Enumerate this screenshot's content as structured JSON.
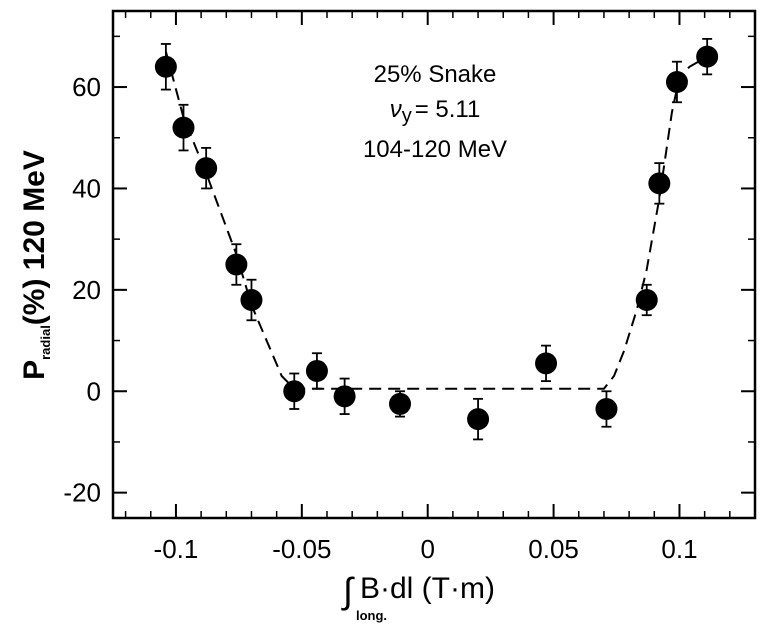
{
  "chart_data": {
    "type": "scatter",
    "xlim": [
      -0.125,
      0.13
    ],
    "ylim": [
      -25,
      75
    ],
    "xticks": [
      -0.1,
      -0.05,
      0,
      0.05,
      0.1
    ],
    "xtick_labels": [
      "-0.1",
      "-0.05",
      "0",
      "0.05",
      "0.1"
    ],
    "yticks": [
      -20,
      0,
      20,
      40,
      60
    ],
    "ytick_labels": [
      "-20",
      "0",
      "20",
      "40",
      "60"
    ],
    "ylabel": {
      "main": "P",
      "sub": "radial",
      "rest": "(%) 120 MeV"
    },
    "xlabel": {
      "integral": "∫",
      "main": "B·dl (T·m)",
      "sub": "long."
    },
    "annotations": {
      "line1": "25% Snake",
      "line2_symbol": "ν",
      "line2_sub": "y",
      "line2_rest": "= 5.11",
      "line3": "104-120 MeV"
    },
    "series": [
      {
        "marker": "filled-circle",
        "points": [
          {
            "x": -0.104,
            "y": 64,
            "err": 4.5
          },
          {
            "x": -0.097,
            "y": 52,
            "err": 4.5
          },
          {
            "x": -0.088,
            "y": 44,
            "err": 4
          },
          {
            "x": -0.076,
            "y": 25,
            "err": 4
          },
          {
            "x": -0.07,
            "y": 18,
            "err": 4
          },
          {
            "x": -0.053,
            "y": 0,
            "err": 3.5
          },
          {
            "x": -0.044,
            "y": 4,
            "err": 3.5
          },
          {
            "x": -0.033,
            "y": -1,
            "err": 3.5
          },
          {
            "x": -0.011,
            "y": -2.5,
            "err": 2.5
          },
          {
            "x": 0.02,
            "y": -5.5,
            "err": 4
          },
          {
            "x": 0.047,
            "y": 5.5,
            "err": 3.5
          },
          {
            "x": 0.071,
            "y": -3.5,
            "err": 3.5
          },
          {
            "x": 0.087,
            "y": 18,
            "err": 3
          },
          {
            "x": 0.092,
            "y": 41,
            "err": 4
          },
          {
            "x": 0.099,
            "y": 61,
            "err": 4
          },
          {
            "x": 0.111,
            "y": 66,
            "err": 3.5
          }
        ]
      }
    ],
    "fit_curve": {
      "style": "dashed",
      "x": [
        -0.104,
        -0.097,
        -0.088,
        -0.076,
        -0.07,
        -0.058,
        -0.054,
        -0.05,
        -0.04,
        0,
        0.04,
        0.07,
        0.074,
        0.078,
        0.083,
        0.087,
        0.092,
        0.097,
        0.1,
        0.104,
        0.111
      ],
      "y": [
        67,
        54,
        43,
        27,
        17,
        3,
        1,
        0.5,
        0.5,
        0.5,
        0.5,
        0.5,
        3,
        8,
        16,
        24,
        38,
        55,
        62,
        64,
        66
      ]
    },
    "grid": false,
    "legend": "none"
  }
}
